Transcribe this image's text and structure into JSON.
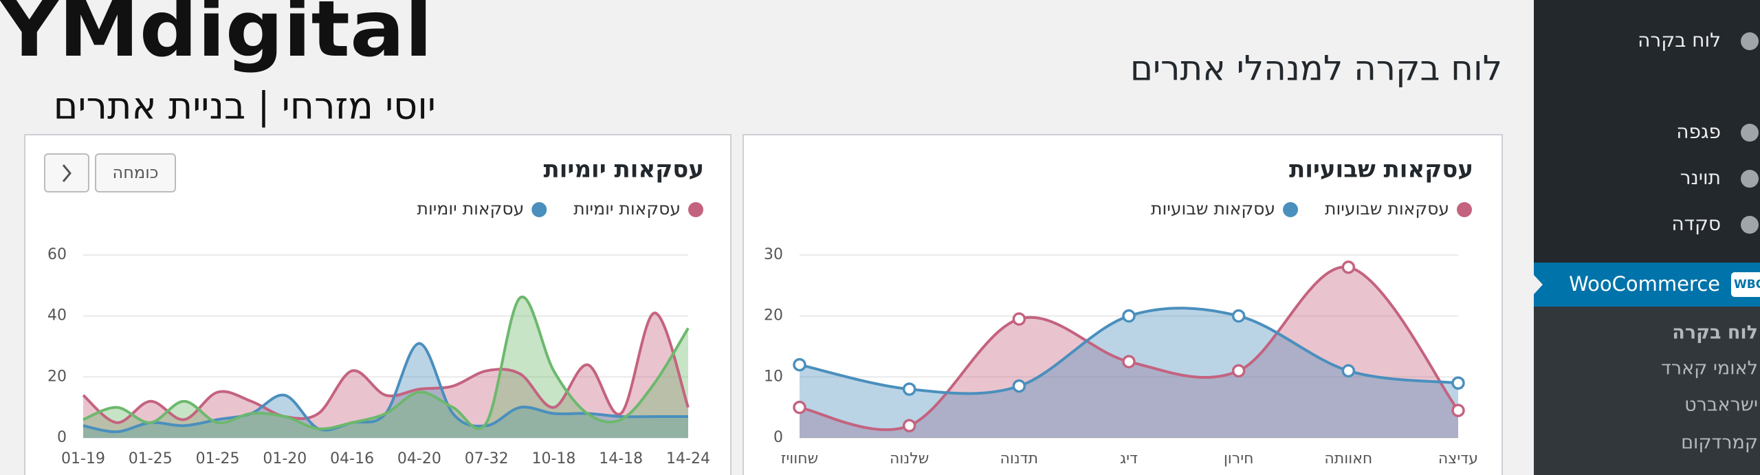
{
  "header": {
    "logo": "YMdigital",
    "tagline": "יוסי מזרחי | בניית אתרים",
    "page_title": "לוח בקרה למנהלי אתרים"
  },
  "sidebar": {
    "items": [
      "לוח בקרה",
      "פגפה",
      "תוינר",
      "סקדה"
    ],
    "active": "WooCommerce",
    "badge": "WBO",
    "submenu": [
      "לוח בקרה",
      "לאומי קארד",
      "ישראברט",
      "קמרדקום"
    ]
  },
  "buttons": {
    "compare": "כומחה"
  },
  "chart_data": [
    {
      "type": "line",
      "title": "עסקאות שבועיות",
      "fill": true,
      "markers": true,
      "grid": true,
      "categories": [
        "שחוויז",
        "שלנוה",
        "תדנוה",
        "דיג",
        "חירון",
        "חאוותה",
        "עדיצה"
      ],
      "ylim": [
        0,
        30
      ],
      "yticks": [
        0,
        10,
        20,
        30
      ],
      "series": [
        {
          "name": "עסקאות שבועיות",
          "color": "#c4637f",
          "values": [
            5,
            2,
            19.5,
            12.5,
            11,
            28,
            4.5
          ]
        },
        {
          "name": "עסקאות שבועיות",
          "color": "#4a8fbd",
          "values": [
            12,
            8,
            8.5,
            20,
            20,
            11,
            9
          ]
        }
      ]
    },
    {
      "type": "line",
      "title": "עסקאות יומיות",
      "fill": true,
      "markers": false,
      "grid": true,
      "categories": [
        "01-19",
        null,
        "01-25",
        null,
        "01-25",
        null,
        "01-20",
        null,
        "04-16",
        null,
        "04-20",
        null,
        "07-32",
        null,
        "10-18",
        null,
        "14-18",
        null,
        "14-24"
      ],
      "ylim": [
        0,
        60
      ],
      "yticks": [
        0,
        20,
        40,
        60
      ],
      "series": [
        {
          "name": "עסקאות יומיות",
          "color": "#c4637f",
          "values": [
            14,
            5,
            12,
            6,
            15,
            12,
            7,
            8,
            22,
            14,
            16,
            17,
            22,
            21,
            10,
            24,
            8,
            41,
            10
          ]
        },
        {
          "name": "עסקאות יומיות",
          "color": "#4a8fbd",
          "values": [
            4,
            2,
            5,
            4,
            6,
            8,
            14,
            3,
            5,
            8,
            31,
            8,
            4,
            10,
            8,
            8,
            7,
            7,
            7
          ]
        },
        {
          "color": "#6db86d",
          "values": [
            6,
            10,
            5,
            12,
            5,
            8,
            7,
            3,
            5,
            8,
            15,
            10,
            5,
            46,
            22,
            8,
            6,
            18,
            36
          ]
        }
      ]
    }
  ]
}
